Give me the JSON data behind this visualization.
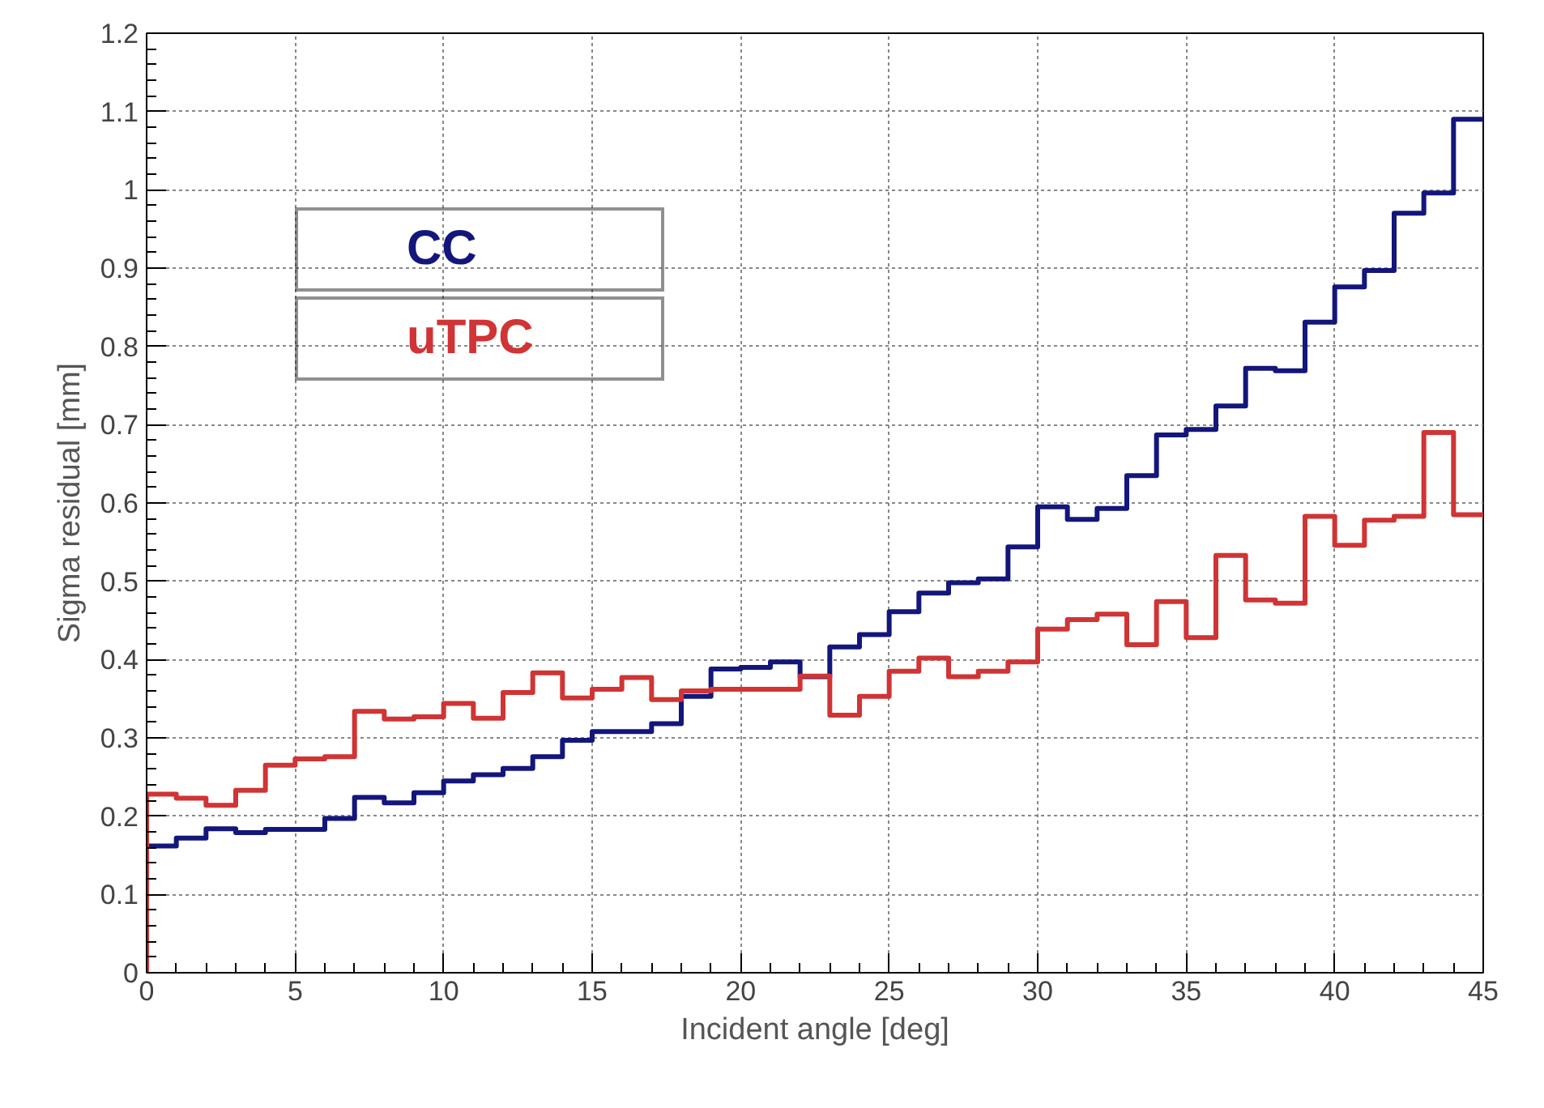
{
  "chart_data": {
    "type": "histogram",
    "xlabel": "Incident angle [deg]",
    "ylabel": "Sigma residual [mm]",
    "bins": [
      0,
      1,
      2,
      3,
      4,
      5,
      6,
      7,
      8,
      9,
      10,
      11,
      12,
      13,
      14,
      15,
      16,
      17,
      18,
      19,
      20,
      21,
      22,
      23,
      24,
      25,
      26,
      27,
      28,
      29,
      30,
      31,
      32,
      33,
      34,
      35,
      36,
      37,
      38,
      39,
      40,
      41,
      42,
      43,
      44,
      45
    ],
    "series": [
      {
        "name": "CC",
        "color": "#13167a",
        "values": [
          0.162,
          0.172,
          0.184,
          0.179,
          0.183,
          0.183,
          0.197,
          0.224,
          0.217,
          0.23,
          0.245,
          0.253,
          0.261,
          0.276,
          0.297,
          0.308,
          0.308,
          0.318,
          0.353,
          0.388,
          0.39,
          0.397,
          0.378,
          0.416,
          0.432,
          0.461,
          0.485,
          0.498,
          0.503,
          0.544,
          0.595,
          0.579,
          0.593,
          0.635,
          0.687,
          0.694,
          0.724,
          0.772,
          0.769,
          0.831,
          0.876,
          0.897,
          0.97,
          0.996,
          1.09
        ]
      },
      {
        "name": "uTPC",
        "color": "#d03434",
        "values": [
          0.228,
          0.223,
          0.214,
          0.233,
          0.265,
          0.273,
          0.276,
          0.334,
          0.324,
          0.327,
          0.344,
          0.325,
          0.358,
          0.383,
          0.351,
          0.362,
          0.377,
          0.349,
          0.36,
          0.362,
          0.362,
          0.362,
          0.379,
          0.329,
          0.353,
          0.385,
          0.402,
          0.378,
          0.385,
          0.397,
          0.439,
          0.451,
          0.458,
          0.419,
          0.474,
          0.428,
          0.533,
          0.476,
          0.472,
          0.583,
          0.546,
          0.578,
          0.583,
          0.69,
          0.585
        ]
      }
    ],
    "xlim": [
      0,
      45
    ],
    "ylim": [
      0,
      1.2
    ],
    "xticks": [
      0,
      5,
      10,
      15,
      20,
      25,
      30,
      35,
      40,
      45
    ],
    "yticks": [
      0,
      0.1,
      0.2,
      0.3,
      0.4,
      0.5,
      0.6,
      0.7,
      0.8,
      0.9,
      1,
      1.1,
      1.2
    ],
    "grid": true,
    "legend": "top left"
  }
}
